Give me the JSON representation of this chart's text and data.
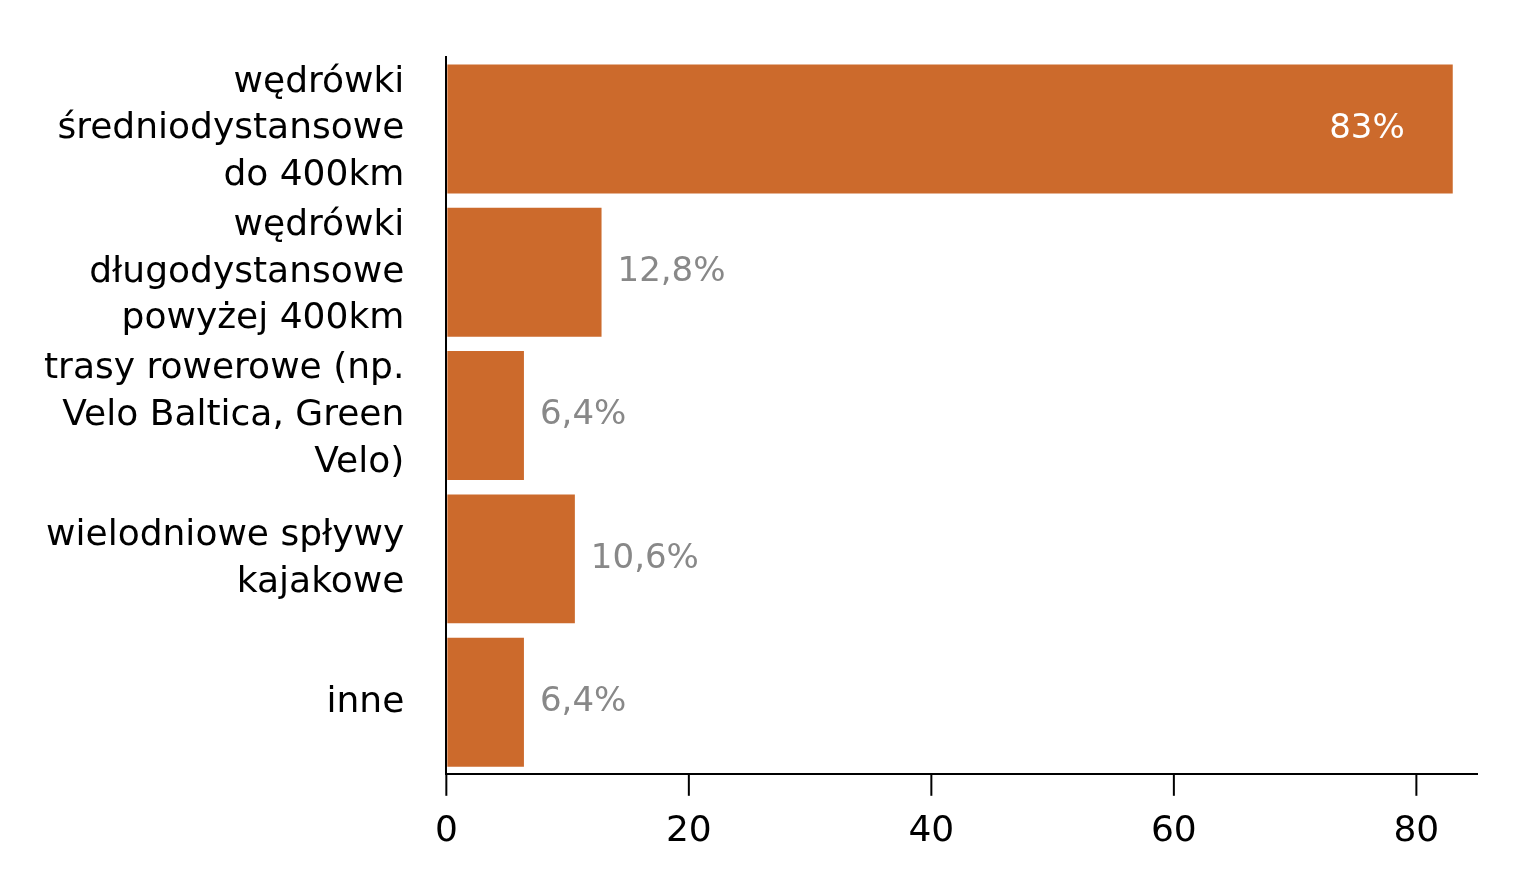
{
  "chart_data": {
    "type": "bar",
    "orientation": "horizontal",
    "categories": [
      "wędrówki średniodystansowe do 400km",
      "wędrówki długodystansowe powyżej 400km",
      "trasy rowerowe (np. Velo Baltica, Green Velo)",
      "wielodniowe spływy kajakowe",
      "inne"
    ],
    "values": [
      83,
      12.8,
      6.4,
      10.6,
      6.4
    ],
    "value_labels": [
      "83%",
      "12,8%",
      "6,4%",
      "10,6%",
      "6,4%"
    ],
    "color": "#cc6a2c",
    "xlim": [
      0,
      85
    ],
    "xticks": [
      0,
      20,
      40,
      60,
      80
    ],
    "grid": false,
    "legend": false
  }
}
